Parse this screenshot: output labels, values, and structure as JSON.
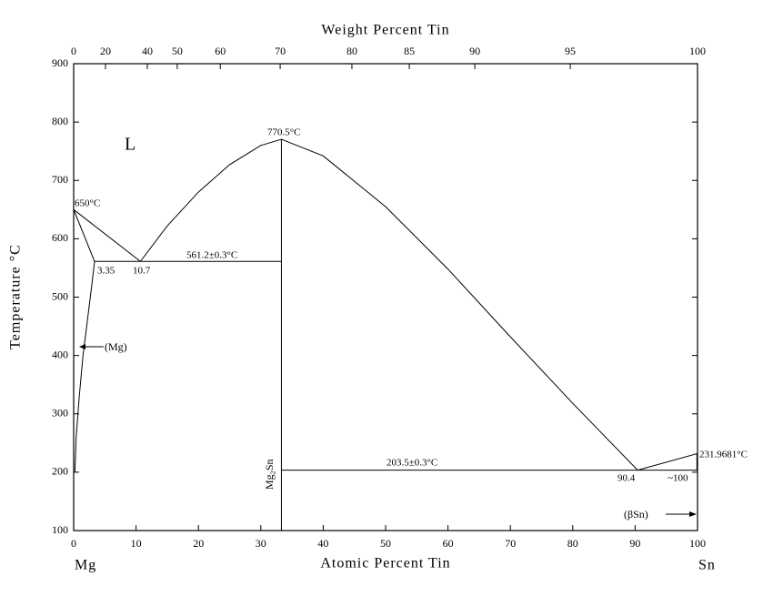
{
  "chart_data": {
    "type": "line",
    "x_label": "Atomic Percent Tin",
    "x2_label": "Weight Percent Tin",
    "y_label": "Temperature °C",
    "xlim": [
      0,
      100
    ],
    "ylim": [
      100,
      900
    ],
    "xticks": [
      0,
      10,
      20,
      30,
      40,
      50,
      60,
      70,
      80,
      90,
      100
    ],
    "x2ticks": [
      0,
      {
        "value": 5.1,
        "label": "20"
      },
      {
        "value": 11.8,
        "label": "40"
      },
      {
        "value": 16.6,
        "label": "50"
      },
      {
        "value": 23.5,
        "label": "60"
      },
      {
        "value": 33.1,
        "label": "70"
      },
      {
        "value": 44.6,
        "label": "80"
      },
      {
        "value": 53.8,
        "label": "85"
      },
      {
        "value": 64.3,
        "label": "90"
      },
      {
        "value": 79.6,
        "label": "95"
      },
      100
    ],
    "yticks": [
      100,
      200,
      300,
      400,
      500,
      600,
      700,
      800,
      900
    ],
    "color": "#000000",
    "lines": [
      {
        "x": [
          0,
          10.7
        ],
        "y": [
          650,
          561.2
        ]
      },
      {
        "x": [
          10.7,
          15,
          20,
          25,
          30,
          33.3
        ],
        "y": [
          561.2,
          622,
          680,
          727,
          760,
          770.5
        ]
      },
      {
        "x": [
          33.3,
          40,
          50,
          60,
          70,
          80,
          90.4
        ],
        "y": [
          770.5,
          742,
          655,
          548,
          432,
          318,
          203.5
        ]
      },
      {
        "x": [
          90.4,
          100
        ],
        "y": [
          203.5,
          231.9681
        ]
      },
      {
        "x": [
          0,
          3.35
        ],
        "y": [
          650,
          561.2
        ]
      },
      {
        "x": [
          3.35,
          2.9,
          2.2,
          1.5,
          0.9,
          0.4,
          0.2
        ],
        "y": [
          561.2,
          520,
          460,
          400,
          330,
          260,
          200
        ]
      },
      {
        "x": [
          3.35,
          33.3
        ],
        "y": [
          561.2,
          561.2
        ]
      },
      {
        "x": [
          33.3,
          33.3
        ],
        "y": [
          100,
          770.5
        ]
      },
      {
        "x": [
          33.3,
          100
        ],
        "y": [
          203.5,
          203.5
        ]
      },
      {
        "x": [
          99.9,
          99.9
        ],
        "y": [
          203.5,
          231.9681
        ]
      }
    ],
    "annotations": [
      "L",
      "650°C",
      "770.5°C",
      "561.2±0.3°C",
      "3.35",
      "10.7",
      "(Mg)",
      "Mg₂Sn",
      "203.5±0.3°C",
      "90.4",
      "~100",
      "231.9681°C",
      "(βSn)",
      "Mg",
      "Sn"
    ]
  }
}
